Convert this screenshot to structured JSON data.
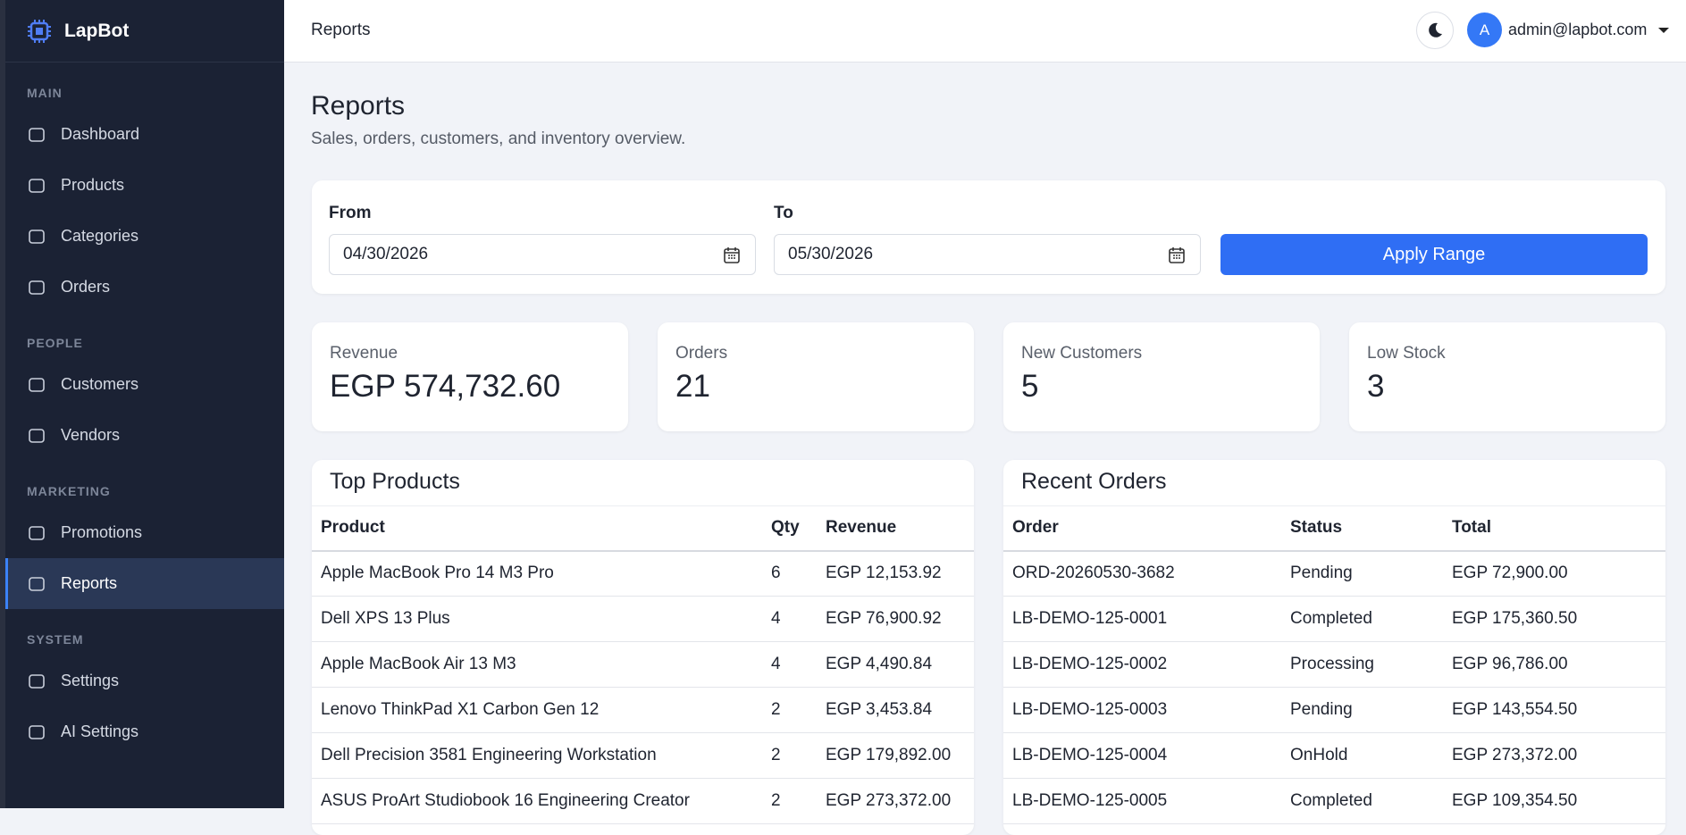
{
  "brand": "LapBot",
  "sidebar": [
    {
      "label": "MAIN",
      "items": [
        "Dashboard",
        "Products",
        "Categories",
        "Orders"
      ]
    },
    {
      "label": "PEOPLE",
      "items": [
        "Customers",
        "Vendors"
      ]
    },
    {
      "label": "MARKETING",
      "items": [
        "Promotions",
        "Reports"
      ]
    },
    {
      "label": "SYSTEM",
      "items": [
        "Settings",
        "AI Settings"
      ]
    }
  ],
  "topbar": {
    "title": "Reports",
    "user_initial": "A",
    "user": "admin@lapbot.com"
  },
  "page": {
    "title": "Reports",
    "subtitle": "Sales, orders, customers, and inventory overview."
  },
  "filter": {
    "from_label": "From",
    "from": "04/30/2026",
    "to_label": "To",
    "to": "05/30/2026",
    "button": "Apply Range"
  },
  "stats": [
    {
      "label": "Revenue",
      "value": "EGP 574,732.60"
    },
    {
      "label": "Orders",
      "value": 21
    },
    {
      "label": "New Customers",
      "value": 5
    },
    {
      "label": "Low Stock",
      "value": 3
    }
  ],
  "top_products": {
    "title": "Top Products",
    "columns": [
      "Product",
      "Qty",
      "Revenue"
    ],
    "rows": [
      [
        "Apple MacBook Pro 14 M3 Pro",
        6,
        "EGP 12,153.92"
      ],
      [
        "Dell XPS 13 Plus",
        4,
        "EGP 76,900.92"
      ],
      [
        "Apple MacBook Air 13 M3",
        4,
        "EGP 4,490.84"
      ],
      [
        "Lenovo ThinkPad X1 Carbon Gen 12",
        2,
        "EGP 3,453.84"
      ],
      [
        "Dell Precision 3581 Engineering Workstation",
        2,
        "EGP 179,892.00"
      ],
      [
        "ASUS ProArt Studiobook 16 Engineering Creator",
        2,
        "EGP 273,372.00"
      ]
    ]
  },
  "recent_orders": {
    "title": "Recent Orders",
    "columns": [
      "Order",
      "Status",
      "Total"
    ],
    "rows": [
      [
        "ORD-20260530-3682",
        "Pending",
        "EGP 72,900.00"
      ],
      [
        "LB-DEMO-125-0001",
        "Completed",
        "EGP 175,360.50"
      ],
      [
        "LB-DEMO-125-0002",
        "Processing",
        "EGP 96,786.00"
      ],
      [
        "LB-DEMO-125-0003",
        "Pending",
        "EGP 143,554.50"
      ],
      [
        "LB-DEMO-125-0004",
        "OnHold",
        "EGP 273,372.00"
      ],
      [
        "LB-DEMO-125-0005",
        "Completed",
        "EGP 109,354.50"
      ]
    ]
  }
}
